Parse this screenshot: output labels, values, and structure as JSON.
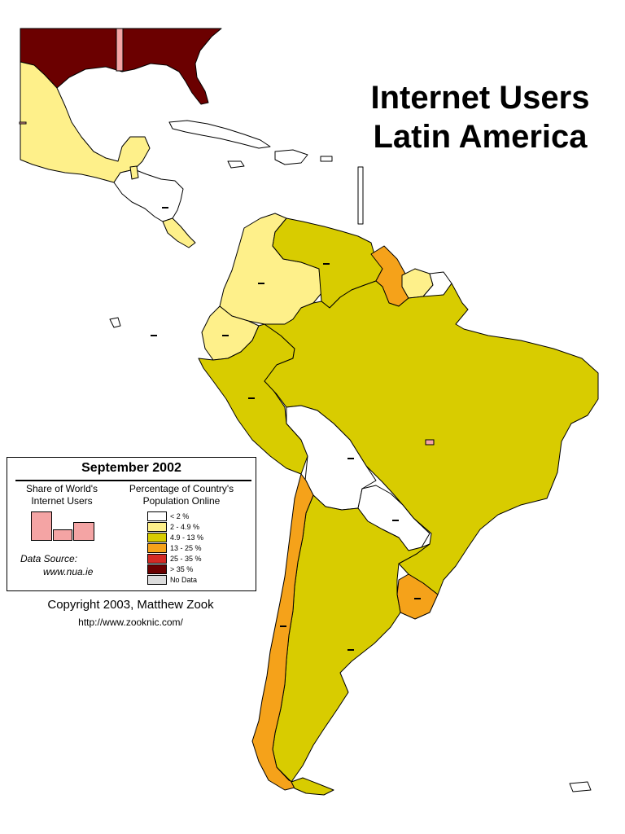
{
  "title": {
    "line1": "Internet Users",
    "line2": "Latin America"
  },
  "legend": {
    "date": "September 2002",
    "share_header_line1": "Share of World's",
    "share_header_line2": "Internet Users",
    "pct_header_line1": "Percentage of Country's",
    "pct_header_line2": "Population Online",
    "categories": [
      {
        "label": "< 2 %",
        "color": "#ffffff"
      },
      {
        "label": "2 - 4.9 %",
        "color": "#fef08a"
      },
      {
        "label": "4.9 - 13 %",
        "color": "#d8cc00"
      },
      {
        "label": "13 - 25 %",
        "color": "#f5a21a"
      },
      {
        "label": "25 - 35 %",
        "color": "#d42a24"
      },
      {
        "label": "> 35 %",
        "color": "#6b0000"
      },
      {
        "label": "No Data",
        "color": "#dcdcdc"
      }
    ],
    "source_label": "Data Source:",
    "source_value": "www.nua.ie"
  },
  "credits": {
    "copyright": "Copyright 2003, Matthew Zook",
    "url": "http://www.zooknic.com/"
  },
  "share_marker_color": "#f4a4a4",
  "regions": [
    {
      "name": "usa",
      "category": 5
    },
    {
      "name": "mexico",
      "category": 1
    },
    {
      "name": "central-america",
      "category": 0
    },
    {
      "name": "belize",
      "category": 1
    },
    {
      "name": "costa-rica",
      "category": 1
    },
    {
      "name": "colombia",
      "category": 1
    },
    {
      "name": "ecuador",
      "category": 1
    },
    {
      "name": "suriname",
      "category": 1
    },
    {
      "name": "venezuela",
      "category": 2
    },
    {
      "name": "peru",
      "category": 2
    },
    {
      "name": "brazil",
      "category": 2
    },
    {
      "name": "argentina",
      "category": 2
    },
    {
      "name": "guyana",
      "category": 3
    },
    {
      "name": "chile",
      "category": 3
    },
    {
      "name": "uruguay",
      "category": 3
    },
    {
      "name": "french-guiana",
      "category": 0
    },
    {
      "name": "bolivia",
      "category": 0
    },
    {
      "name": "paraguay",
      "category": 0
    },
    {
      "name": "caribbean",
      "category": 0
    }
  ]
}
